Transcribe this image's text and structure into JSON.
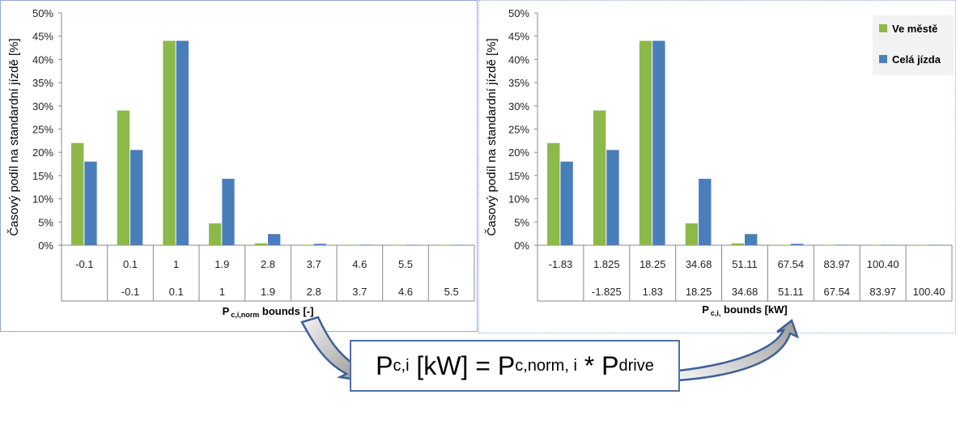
{
  "chart_data": [
    {
      "type": "bar",
      "ylabel": "Časový podíl na standardní jízdě [%]",
      "xlabel_main": "P",
      "xlabel_sub": "c,i,norm",
      "xlabel_rest": " bounds [-]",
      "ylim": [
        0,
        50
      ],
      "yticks": [
        "0%",
        "5%",
        "10%",
        "15%",
        "20%",
        "25%",
        "30%",
        "35%",
        "40%",
        "45%",
        "50%"
      ],
      "categories_upper": [
        "-0.1",
        "0.1",
        "1",
        "1.9",
        "2.8",
        "3.7",
        "4.6",
        "5.5",
        ""
      ],
      "categories_lower": [
        "",
        "-0.1",
        "0.1",
        "1",
        "1.9",
        "2.8",
        "3.7",
        "4.6",
        "5.5"
      ],
      "grid": false,
      "series": [
        {
          "name": "Ve městě",
          "color": "#8db84a",
          "values": [
            22,
            29,
            44,
            4.7,
            0.4,
            0.1,
            0.05,
            0.05,
            0.05
          ]
        },
        {
          "name": "Celá jízda",
          "color": "#4a7ebb",
          "values": [
            18,
            20.5,
            44,
            14.3,
            2.4,
            0.3,
            0.1,
            0.05,
            0.05
          ]
        }
      ],
      "legend": false
    },
    {
      "type": "bar",
      "ylabel": "Časový podíl na standardní jízdě [%]",
      "xlabel_main": "P",
      "xlabel_sub": "c,i,",
      "xlabel_rest": " bounds [kW]",
      "ylim": [
        0,
        50
      ],
      "yticks": [
        "0%",
        "5%",
        "10%",
        "15%",
        "20%",
        "25%",
        "30%",
        "35%",
        "40%",
        "45%",
        "50%"
      ],
      "categories_upper": [
        "-1.83",
        "1.825",
        "18.25",
        "34.68",
        "51.11",
        "67.54",
        "83.97",
        "100.40",
        ""
      ],
      "categories_lower": [
        "",
        "-1.825",
        "1.83",
        "18.25",
        "34.68",
        "51.11",
        "67.54",
        "83.97",
        "100.40"
      ],
      "grid": false,
      "series": [
        {
          "name": "Ve městě",
          "color": "#8db84a",
          "values": [
            22,
            29,
            44,
            4.7,
            0.4,
            0.1,
            0.05,
            0.05,
            0.05
          ]
        },
        {
          "name": "Celá jízda",
          "color": "#4a7ebb",
          "values": [
            18,
            20.5,
            44,
            14.3,
            2.4,
            0.3,
            0.1,
            0.05,
            0.05
          ]
        }
      ],
      "legend": true,
      "legend_position": "top-right"
    }
  ],
  "formula": {
    "p1": "P",
    "s1": "c,i",
    "mid": " [kW] = P",
    "s2": "c,norm, i",
    "star": " * P",
    "s3": "drive"
  }
}
